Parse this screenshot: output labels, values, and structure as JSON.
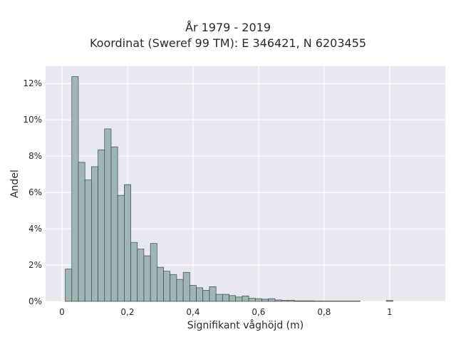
{
  "chart_data": {
    "type": "bar",
    "title_lines": [
      "År 1979 - 2019",
      "Koordinat (Sweref 99 TM): E 346421, N 6203455"
    ],
    "xlabel": "Signifikant våghöjd (m)",
    "ylabel": "Andel",
    "xlim": [
      -0.05,
      1.17
    ],
    "ylim": [
      0,
      0.1295
    ],
    "x_ticks": [
      0,
      0.2,
      0.4,
      0.6,
      0.8,
      1
    ],
    "x_tick_labels": [
      "0",
      "0,2",
      "0,4",
      "0,6",
      "0,8",
      "1"
    ],
    "y_ticks": [
      0,
      0.02,
      0.04,
      0.06,
      0.08,
      0.1,
      0.12
    ],
    "y_tick_labels": [
      "0%",
      "2%",
      "4%",
      "6%",
      "8%",
      "10%",
      "12%"
    ],
    "bin_width": 0.02,
    "bins_start": [
      0.01,
      0.03,
      0.05,
      0.07,
      0.09,
      0.11,
      0.13,
      0.15,
      0.17,
      0.19,
      0.21,
      0.23,
      0.25,
      0.27,
      0.29,
      0.31,
      0.33,
      0.35,
      0.37,
      0.39,
      0.41,
      0.43,
      0.45,
      0.47,
      0.49,
      0.51,
      0.53,
      0.55,
      0.57,
      0.59,
      0.61,
      0.63,
      0.65,
      0.67,
      0.69,
      0.71,
      0.73,
      0.75,
      0.77,
      0.79,
      0.81,
      0.83,
      0.85,
      0.87,
      0.89,
      0.91,
      0.93,
      0.95,
      0.97,
      0.99
    ],
    "values": [
      0.0178,
      0.1238,
      0.0766,
      0.0669,
      0.0742,
      0.0835,
      0.095,
      0.0851,
      0.0584,
      0.0643,
      0.0325,
      0.0288,
      0.0251,
      0.0319,
      0.0188,
      0.0166,
      0.0148,
      0.0121,
      0.016,
      0.0088,
      0.0075,
      0.0061,
      0.0081,
      0.0039,
      0.0039,
      0.0032,
      0.0024,
      0.003,
      0.0017,
      0.0015,
      0.0012,
      0.0015,
      0.0008,
      0.0006,
      0.0006,
      0.0003,
      0.0003,
      0.0003,
      0.0002,
      0.0002,
      0.0002,
      0.0002,
      0.0002,
      0.0002,
      0.0002,
      0.0,
      0.0,
      0.0,
      0.0,
      0.0005
    ],
    "grid": true,
    "colors": {
      "plot_background": "#e8e8f1",
      "grid": "#ffffff",
      "bar_fill": "#9fb6b7",
      "bar_edge": "#3e4545"
    }
  }
}
